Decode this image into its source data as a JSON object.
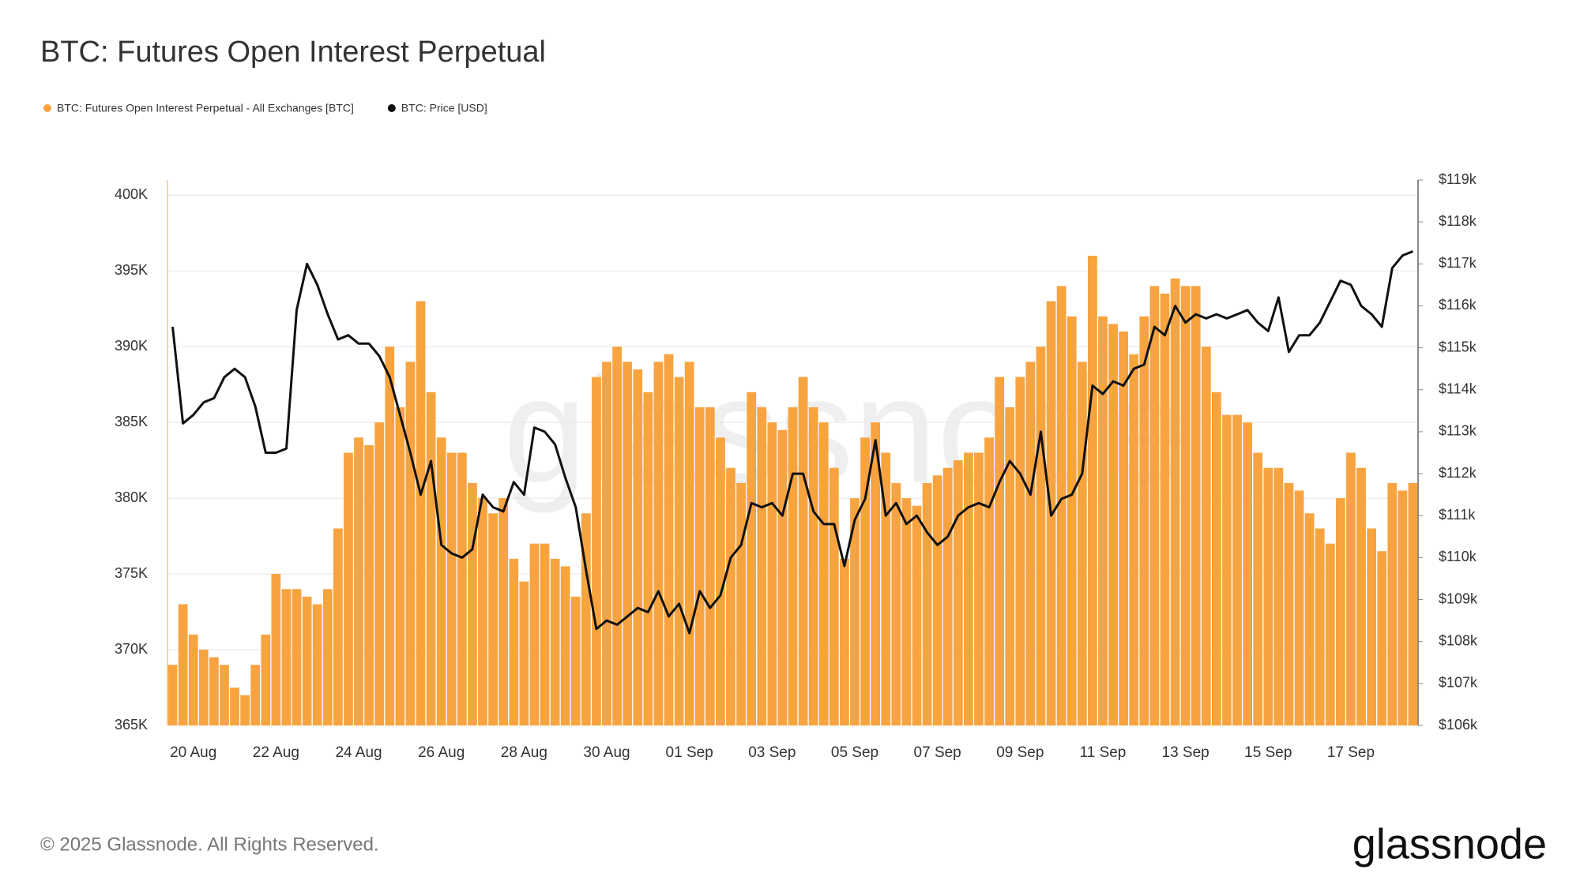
{
  "chart_data": {
    "type": "bar-line",
    "title": "BTC: Futures Open Interest Perpetual",
    "watermark": "glassnode",
    "footer": "© 2025 Glassnode. All Rights Reserved.",
    "logo": "glassnode",
    "grid": true,
    "categories": [
      null,
      null,
      "20 Aug",
      null,
      null,
      null,
      null,
      null,
      null,
      null,
      "22 Aug",
      null,
      null,
      null,
      null,
      null,
      null,
      null,
      "24 Aug",
      null,
      null,
      null,
      null,
      null,
      null,
      null,
      "26 Aug",
      null,
      null,
      null,
      null,
      null,
      null,
      null,
      "28 Aug",
      null,
      null,
      null,
      null,
      null,
      null,
      null,
      "30 Aug",
      null,
      null,
      null,
      null,
      null,
      null,
      null,
      "01 Sep",
      null,
      null,
      null,
      null,
      null,
      null,
      null,
      "03 Sep",
      null,
      null,
      null,
      null,
      null,
      null,
      null,
      "05 Sep",
      null,
      null,
      null,
      null,
      null,
      null,
      null,
      "07 Sep",
      null,
      null,
      null,
      null,
      null,
      null,
      null,
      "09 Sep",
      null,
      null,
      null,
      null,
      null,
      null,
      null,
      "11 Sep",
      null,
      null,
      null,
      null,
      null,
      null,
      null,
      "13 Sep",
      null,
      null,
      null,
      null,
      null,
      null,
      null,
      "15 Sep",
      null,
      null,
      null,
      null,
      null,
      null,
      null,
      "17 Sep",
      null,
      null,
      null,
      null,
      null,
      null
    ],
    "ylim": [
      365000,
      401000
    ],
    "yticks": [
      {
        "value": 365000,
        "label": "365K"
      },
      {
        "value": 370000,
        "label": "370K"
      },
      {
        "value": 375000,
        "label": "375K"
      },
      {
        "value": 380000,
        "label": "380K"
      },
      {
        "value": 385000,
        "label": "385K"
      },
      {
        "value": 390000,
        "label": "390K"
      },
      {
        "value": 395000,
        "label": "395K"
      },
      {
        "value": 400000,
        "label": "400K"
      }
    ],
    "y2lim": [
      106000,
      119000
    ],
    "y2ticks": [
      {
        "value": 106000,
        "label": "$106k"
      },
      {
        "value": 107000,
        "label": "$107k"
      },
      {
        "value": 108000,
        "label": "$108k"
      },
      {
        "value": 109000,
        "label": "$109k"
      },
      {
        "value": 110000,
        "label": "$110k"
      },
      {
        "value": 111000,
        "label": "$111k"
      },
      {
        "value": 112000,
        "label": "$112k"
      },
      {
        "value": 113000,
        "label": "$113k"
      },
      {
        "value": 114000,
        "label": "$114k"
      },
      {
        "value": 115000,
        "label": "$115k"
      },
      {
        "value": 116000,
        "label": "$116k"
      },
      {
        "value": 117000,
        "label": "$117k"
      },
      {
        "value": 118000,
        "label": "$118k"
      },
      {
        "value": 119000,
        "label": "$119k"
      }
    ],
    "series": [
      {
        "name": "BTC: Futures Open Interest Perpetual - All Exchanges [BTC]",
        "type": "bar",
        "color": "#f7a440",
        "values": [
          369000,
          373000,
          371000,
          370000,
          369500,
          369000,
          367500,
          367000,
          369000,
          371000,
          375000,
          374000,
          374000,
          373500,
          373000,
          374000,
          378000,
          383000,
          384000,
          383500,
          385000,
          390000,
          386000,
          389000,
          393000,
          387000,
          384000,
          383000,
          383000,
          381000,
          380000,
          379000,
          380000,
          376000,
          374500,
          377000,
          377000,
          376000,
          375500,
          373500,
          379000,
          388000,
          389000,
          390000,
          389000,
          388500,
          387000,
          389000,
          389500,
          388000,
          389000,
          386000,
          386000,
          384000,
          382000,
          381000,
          387000,
          386000,
          385000,
          384500,
          386000,
          388000,
          386000,
          385000,
          382000,
          376000,
          380000,
          384000,
          385000,
          383000,
          381000,
          380000,
          379500,
          381000,
          381500,
          382000,
          382500,
          383000,
          383000,
          384000,
          388000,
          386000,
          388000,
          389000,
          390000,
          393000,
          394000,
          392000,
          389000,
          396000,
          392000,
          391500,
          391000,
          389500,
          392000,
          394000,
          393500,
          394500,
          394000,
          394000,
          390000,
          387000,
          385500,
          385500,
          385000,
          383000,
          382000,
          382000,
          381000,
          380500,
          379000,
          378000,
          377000,
          380000,
          383000,
          382000,
          378000,
          376500,
          381000,
          380500,
          381000
        ]
      },
      {
        "name": "BTC: Price [USD]",
        "type": "line",
        "axis": "y2",
        "color": "#111111",
        "values": [
          115500,
          113200,
          113400,
          113700,
          113800,
          114300,
          114500,
          114300,
          113600,
          112500,
          112500,
          112600,
          115900,
          117000,
          116500,
          115800,
          115200,
          115300,
          115100,
          115100,
          114800,
          114300,
          113400,
          112500,
          111500,
          112300,
          110300,
          110100,
          110000,
          110200,
          111500,
          111200,
          111100,
          111800,
          111500,
          113100,
          113000,
          112700,
          111900,
          111200,
          109700,
          108300,
          108500,
          108400,
          108600,
          108800,
          108700,
          109200,
          108600,
          108900,
          108200,
          109200,
          108800,
          109100,
          110000,
          110300,
          111300,
          111200,
          111300,
          111000,
          112000,
          112000,
          111100,
          110800,
          110800,
          109800,
          110900,
          111400,
          112800,
          111000,
          111300,
          110800,
          111000,
          110600,
          110300,
          110500,
          111000,
          111200,
          111300,
          111200,
          111800,
          112300,
          112000,
          111500,
          113000,
          111000,
          111400,
          111500,
          112000,
          114100,
          113900,
          114200,
          114100,
          114500,
          114600,
          115500,
          115300,
          116000,
          115600,
          115800,
          115700,
          115800,
          115700,
          115800,
          115900,
          115600,
          115400,
          116200,
          114900,
          115300,
          115300,
          115600,
          116100,
          116600,
          116500,
          116000,
          115800,
          115500,
          116900,
          117200,
          117300
        ]
      }
    ]
  }
}
